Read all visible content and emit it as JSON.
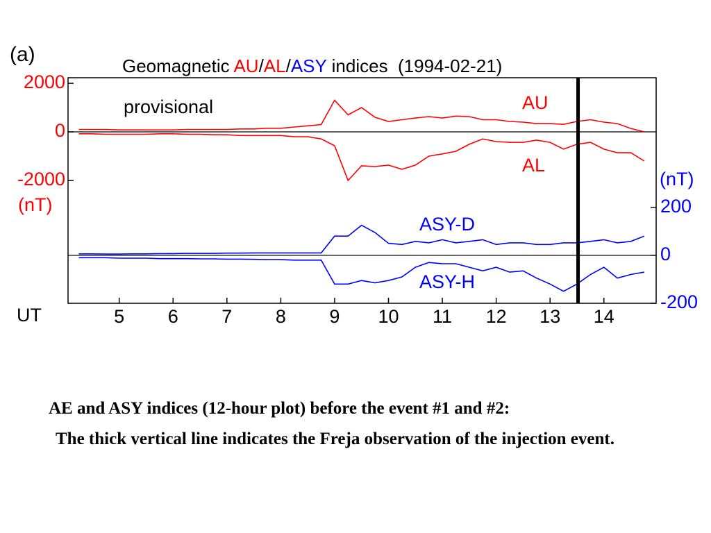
{
  "chart_data": {
    "type": "line",
    "panel_label": "(a)",
    "title_parts": [
      {
        "text": "Geomagnetic ",
        "color": "#000000"
      },
      {
        "text": "AU",
        "color": "#ff0000"
      },
      {
        "text": "/",
        "color": "#000000"
      },
      {
        "text": "AL",
        "color": "#ff0000"
      },
      {
        "text": "/",
        "color": "#000000"
      },
      {
        "text": "ASY",
        "color": "#0000ff"
      },
      {
        "text": " indices  (1994-02-21)",
        "color": "#000000"
      }
    ],
    "annotation": "provisional",
    "xlabel": "UT",
    "ylabel": "(nT)",
    "y2label": "(nT)",
    "ytick_color": "#ff0000",
    "y2tick_color": "#0000ff",
    "xlim": [
      4.05,
      14.97
    ],
    "xticks": [
      5,
      6,
      7,
      8,
      9,
      10,
      11,
      12,
      13,
      14
    ],
    "ylim": [
      -7060,
      2230
    ],
    "yticks": [
      2000,
      0,
      -2000
    ],
    "y2lim": [
      -200,
      740
    ],
    "y2ticks": [
      200,
      0,
      -200
    ],
    "event_x": 13.52,
    "x": [
      4.25,
      4.5,
      4.75,
      5,
      5.25,
      5.5,
      5.75,
      6,
      6.25,
      6.5,
      6.75,
      7,
      7.25,
      7.5,
      7.75,
      8,
      8.25,
      8.5,
      8.75,
      9,
      9.25,
      9.5,
      9.75,
      10,
      10.25,
      10.5,
      10.75,
      11,
      11.25,
      11.5,
      11.75,
      12,
      12.25,
      12.5,
      12.75,
      13,
      13.25,
      13.5,
      13.75,
      14,
      14.25,
      14.5,
      14.75
    ],
    "series": [
      {
        "name": "AU",
        "color": "#ff0000",
        "axis": "y",
        "values": [
          100,
          100,
          100,
          80,
          80,
          80,
          80,
          80,
          100,
          100,
          100,
          100,
          120,
          120,
          150,
          150,
          200,
          250,
          300,
          1300,
          700,
          1000,
          600,
          430,
          500,
          570,
          630,
          570,
          650,
          630,
          500,
          500,
          430,
          400,
          340,
          340,
          310,
          430,
          500,
          400,
          340,
          140,
          0
        ]
      },
      {
        "name": "AL",
        "color": "#ff0000",
        "axis": "y",
        "values": [
          -80,
          -80,
          -100,
          -100,
          -100,
          -100,
          -80,
          -80,
          -100,
          -100,
          -120,
          -120,
          -150,
          -150,
          -150,
          -150,
          -200,
          -200,
          -290,
          -570,
          -2000,
          -1400,
          -1430,
          -1370,
          -1540,
          -1370,
          -1000,
          -910,
          -800,
          -510,
          -290,
          -400,
          -430,
          -430,
          -340,
          -430,
          -710,
          -510,
          -430,
          -710,
          -860,
          -860,
          -1200
        ]
      },
      {
        "name": "ASY-D",
        "color": "#0000ff",
        "axis": "y2",
        "values": [
          6,
          6,
          5,
          5,
          6,
          6,
          7,
          7,
          8,
          8,
          8,
          9,
          9,
          10,
          10,
          10,
          10,
          10,
          10,
          80,
          80,
          125,
          95,
          50,
          45,
          58,
          52,
          65,
          52,
          58,
          65,
          45,
          52,
          52,
          45,
          45,
          52,
          52,
          58,
          65,
          52,
          58,
          80
        ]
      },
      {
        "name": "ASY-H",
        "color": "#0000ff",
        "axis": "y2",
        "values": [
          -10,
          -10,
          -10,
          -12,
          -12,
          -12,
          -14,
          -14,
          -14,
          -15,
          -15,
          -16,
          -16,
          -17,
          -18,
          -18,
          -20,
          -20,
          -20,
          -120,
          -120,
          -105,
          -115,
          -105,
          -90,
          -50,
          -30,
          -35,
          -35,
          -50,
          -65,
          -50,
          -70,
          -65,
          -95,
          -120,
          -150,
          -120,
          -80,
          -50,
          -95,
          -80,
          -70
        ]
      }
    ]
  },
  "caption": [
    "AE and ASY indices (12-hour plot) before the event #1 and #2:",
    "The thick vertical line indicates the Freja observation of the injection event."
  ]
}
